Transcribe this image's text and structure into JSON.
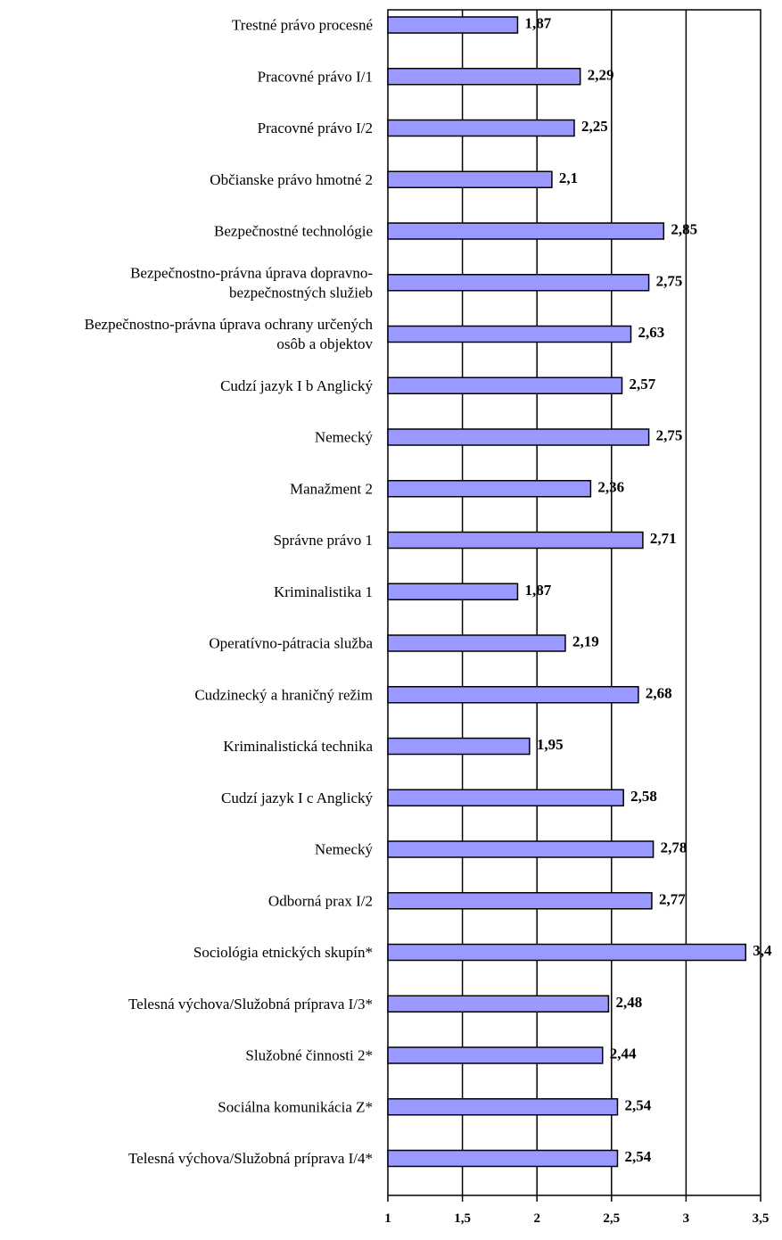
{
  "chart_data": {
    "type": "bar",
    "orientation": "horizontal",
    "categories": [
      [
        "Trestné právo procesné"
      ],
      [
        "Pracovné právo I/1"
      ],
      [
        "Pracovné právo I/2"
      ],
      [
        "Občianske právo hmotné 2"
      ],
      [
        "Bezpečnostné technológie"
      ],
      [
        "Bezpečnostno-právna úprava dopravno-",
        "bezpečnostných služieb"
      ],
      [
        "Bezpečnostno-právna úprava ochrany určených",
        "osôb a objektov"
      ],
      [
        "Cudzí jazyk I b Anglický"
      ],
      [
        "Nemecký"
      ],
      [
        "Manažment 2"
      ],
      [
        "Správne právo 1"
      ],
      [
        "Kriminalistika 1"
      ],
      [
        "Operatívno-pátracia služba"
      ],
      [
        "Cudzinecký a hraničný režim"
      ],
      [
        "Kriminalistická technika"
      ],
      [
        "Cudzí jazyk I c Anglický"
      ],
      [
        "Nemecký"
      ],
      [
        "Odborná prax I/2"
      ],
      [
        "Sociológia etnických skupín*"
      ],
      [
        "Telesná výchova/Služobná príprava I/3*"
      ],
      [
        "Služobné činnosti 2*"
      ],
      [
        "Sociálna komunikácia Z*"
      ],
      [
        "Telesná výchova/Služobná príprava I/4*"
      ]
    ],
    "values": [
      1.87,
      2.29,
      2.25,
      2.1,
      2.85,
      2.75,
      2.63,
      2.57,
      2.75,
      2.36,
      2.71,
      1.87,
      2.19,
      2.68,
      1.95,
      2.58,
      2.78,
      2.77,
      3.4,
      2.48,
      2.44,
      2.54,
      2.54
    ],
    "value_labels": [
      "1,87",
      "2,29",
      "2,25",
      "2,1",
      "2,85",
      "2,75",
      "2,63",
      "2,57",
      "2,75",
      "2,36",
      "2,71",
      "1,87",
      "2,19",
      "2,68",
      "1,95",
      "2,58",
      "2,78",
      "2,77",
      "3,4",
      "2,48",
      "2,44",
      "2,54",
      "2,54"
    ],
    "xlim": [
      1,
      3.5
    ],
    "x_ticks": [
      1,
      1.5,
      2,
      2.5,
      3,
      3.5
    ],
    "x_tick_labels": [
      "1",
      "1,5",
      "2",
      "2,5",
      "3",
      "3,5"
    ],
    "grid": "vertical",
    "title": "",
    "xlabel": "",
    "ylabel": "",
    "colors": {
      "bar_fill": "#9999ff",
      "bar_stroke": "#000000",
      "gridline": "#000000",
      "background": "#ffffff"
    }
  }
}
